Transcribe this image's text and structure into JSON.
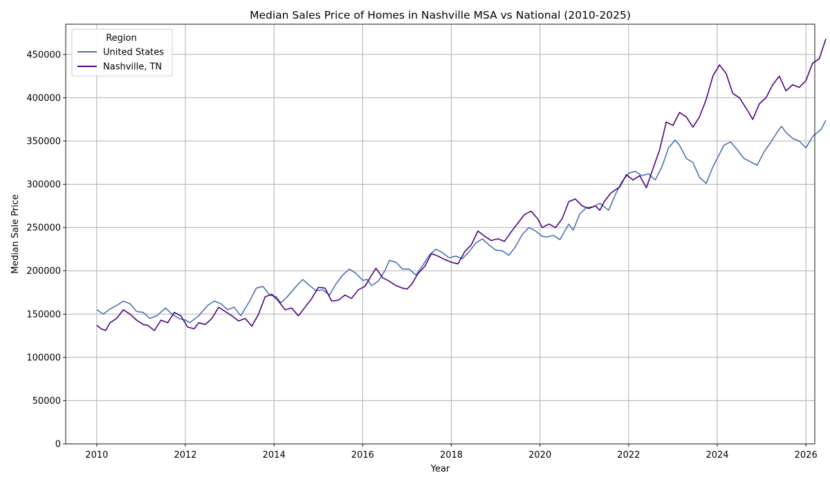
{
  "chart_data": {
    "type": "line",
    "title": "Median Sales Price of Homes in Nashville MSA vs National (2010-2025)",
    "xlabel": "Year",
    "ylabel": "Median Sale Price",
    "xlim": [
      2009.3,
      2026.2
    ],
    "ylim": [
      0,
      485000
    ],
    "x_ticks": [
      2010,
      2012,
      2014,
      2016,
      2018,
      2020,
      2022,
      2024,
      2026
    ],
    "y_ticks": [
      0,
      50000,
      100000,
      150000,
      200000,
      250000,
      300000,
      350000,
      400000,
      450000
    ],
    "grid": true,
    "legend": {
      "title": "Region",
      "position": "top-left"
    },
    "series": [
      {
        "name": "United States",
        "color": "#4c72b0",
        "points": [
          [
            2010.0,
            155000
          ],
          [
            2010.15,
            150000
          ],
          [
            2010.3,
            156000
          ],
          [
            2010.45,
            160000
          ],
          [
            2010.6,
            165000
          ],
          [
            2010.75,
            162000
          ],
          [
            2010.9,
            153000
          ],
          [
            2011.05,
            152000
          ],
          [
            2011.2,
            145000
          ],
          [
            2011.35,
            148000
          ],
          [
            2011.55,
            157000
          ],
          [
            2011.7,
            150000
          ],
          [
            2011.85,
            145000
          ],
          [
            2012.0,
            143000
          ],
          [
            2012.1,
            140000
          ],
          [
            2012.3,
            148000
          ],
          [
            2012.5,
            160000
          ],
          [
            2012.65,
            165000
          ],
          [
            2012.8,
            162000
          ],
          [
            2012.95,
            155000
          ],
          [
            2013.1,
            158000
          ],
          [
            2013.25,
            148000
          ],
          [
            2013.45,
            165000
          ],
          [
            2013.6,
            180000
          ],
          [
            2013.75,
            182000
          ],
          [
            2013.9,
            172000
          ],
          [
            2014.05,
            170000
          ],
          [
            2014.15,
            163000
          ],
          [
            2014.3,
            170000
          ],
          [
            2014.5,
            182000
          ],
          [
            2014.65,
            190000
          ],
          [
            2014.8,
            183000
          ],
          [
            2014.95,
            177000
          ],
          [
            2015.1,
            178000
          ],
          [
            2015.25,
            172000
          ],
          [
            2015.4,
            185000
          ],
          [
            2015.55,
            195000
          ],
          [
            2015.7,
            202000
          ],
          [
            2015.85,
            197000
          ],
          [
            2016.0,
            189000
          ],
          [
            2016.1,
            190000
          ],
          [
            2016.2,
            183000
          ],
          [
            2016.35,
            188000
          ],
          [
            2016.5,
            200000
          ],
          [
            2016.6,
            212000
          ],
          [
            2016.75,
            210000
          ],
          [
            2016.9,
            202000
          ],
          [
            2017.05,
            202000
          ],
          [
            2017.2,
            195000
          ],
          [
            2017.35,
            206000
          ],
          [
            2017.5,
            218000
          ],
          [
            2017.65,
            225000
          ],
          [
            2017.8,
            221000
          ],
          [
            2017.95,
            215000
          ],
          [
            2018.1,
            217000
          ],
          [
            2018.25,
            214000
          ],
          [
            2018.4,
            222000
          ],
          [
            2018.55,
            232000
          ],
          [
            2018.7,
            237000
          ],
          [
            2018.85,
            230000
          ],
          [
            2019.0,
            224000
          ],
          [
            2019.15,
            223000
          ],
          [
            2019.3,
            218000
          ],
          [
            2019.45,
            228000
          ],
          [
            2019.6,
            242000
          ],
          [
            2019.75,
            250000
          ],
          [
            2019.9,
            246000
          ],
          [
            2020.05,
            240000
          ],
          [
            2020.15,
            239000
          ],
          [
            2020.3,
            241000
          ],
          [
            2020.45,
            236000
          ],
          [
            2020.55,
            245000
          ],
          [
            2020.65,
            254000
          ],
          [
            2020.75,
            247000
          ],
          [
            2020.9,
            266000
          ],
          [
            2021.05,
            273000
          ],
          [
            2021.2,
            274000
          ],
          [
            2021.35,
            278000
          ],
          [
            2021.55,
            270000
          ],
          [
            2021.7,
            288000
          ],
          [
            2021.85,
            303000
          ],
          [
            2022.0,
            313000
          ],
          [
            2022.15,
            315000
          ],
          [
            2022.3,
            310000
          ],
          [
            2022.45,
            312000
          ],
          [
            2022.6,
            305000
          ],
          [
            2022.75,
            320000
          ],
          [
            2022.9,
            342000
          ],
          [
            2023.05,
            351000
          ],
          [
            2023.15,
            345000
          ],
          [
            2023.3,
            330000
          ],
          [
            2023.45,
            325000
          ],
          [
            2023.6,
            308000
          ],
          [
            2023.75,
            301000
          ],
          [
            2023.9,
            320000
          ],
          [
            2024.05,
            335000
          ],
          [
            2024.15,
            345000
          ],
          [
            2024.3,
            349000
          ],
          [
            2024.45,
            340000
          ],
          [
            2024.6,
            330000
          ],
          [
            2024.75,
            326000
          ],
          [
            2024.9,
            322000
          ],
          [
            2025.05,
            337000
          ],
          [
            2025.2,
            348000
          ],
          [
            2025.35,
            360000
          ],
          [
            2025.45,
            367000
          ],
          [
            2025.55,
            360000
          ],
          [
            2025.7,
            353000
          ],
          [
            2025.85,
            350000
          ],
          [
            2026.0,
            342000
          ],
          [
            2026.15,
            355000
          ],
          [
            2026.35,
            364000
          ],
          [
            2026.45,
            374000
          ]
        ]
      },
      {
        "name": "Nashville, TN",
        "color": "#4b0082",
        "points": [
          [
            2010.0,
            137000
          ],
          [
            2010.1,
            133000
          ],
          [
            2010.2,
            131000
          ],
          [
            2010.3,
            140000
          ],
          [
            2010.45,
            145000
          ],
          [
            2010.6,
            155000
          ],
          [
            2010.75,
            150000
          ],
          [
            2010.9,
            143000
          ],
          [
            2011.05,
            138000
          ],
          [
            2011.15,
            137000
          ],
          [
            2011.3,
            131000
          ],
          [
            2011.45,
            143000
          ],
          [
            2011.6,
            140000
          ],
          [
            2011.75,
            152000
          ],
          [
            2011.9,
            148000
          ],
          [
            2012.05,
            135000
          ],
          [
            2012.2,
            133000
          ],
          [
            2012.3,
            140000
          ],
          [
            2012.45,
            138000
          ],
          [
            2012.6,
            145000
          ],
          [
            2012.75,
            158000
          ],
          [
            2012.9,
            153000
          ],
          [
            2013.05,
            148000
          ],
          [
            2013.2,
            142000
          ],
          [
            2013.35,
            145000
          ],
          [
            2013.5,
            136000
          ],
          [
            2013.65,
            150000
          ],
          [
            2013.8,
            170000
          ],
          [
            2013.95,
            173000
          ],
          [
            2014.1,
            165000
          ],
          [
            2014.25,
            155000
          ],
          [
            2014.4,
            157000
          ],
          [
            2014.55,
            148000
          ],
          [
            2014.7,
            158000
          ],
          [
            2014.85,
            168000
          ],
          [
            2015.0,
            181000
          ],
          [
            2015.15,
            180000
          ],
          [
            2015.3,
            165000
          ],
          [
            2015.45,
            166000
          ],
          [
            2015.6,
            172000
          ],
          [
            2015.75,
            168000
          ],
          [
            2015.9,
            178000
          ],
          [
            2016.05,
            182000
          ],
          [
            2016.2,
            195000
          ],
          [
            2016.3,
            203000
          ],
          [
            2016.45,
            192000
          ],
          [
            2016.6,
            188000
          ],
          [
            2016.75,
            183000
          ],
          [
            2016.9,
            180000
          ],
          [
            2017.0,
            179000
          ],
          [
            2017.1,
            184000
          ],
          [
            2017.25,
            197000
          ],
          [
            2017.4,
            205000
          ],
          [
            2017.55,
            220000
          ],
          [
            2017.7,
            217000
          ],
          [
            2017.85,
            213000
          ],
          [
            2018.0,
            210000
          ],
          [
            2018.15,
            208000
          ],
          [
            2018.3,
            222000
          ],
          [
            2018.45,
            230000
          ],
          [
            2018.6,
            246000
          ],
          [
            2018.75,
            240000
          ],
          [
            2018.9,
            235000
          ],
          [
            2019.05,
            237000
          ],
          [
            2019.2,
            234000
          ],
          [
            2019.35,
            245000
          ],
          [
            2019.5,
            255000
          ],
          [
            2019.65,
            265000
          ],
          [
            2019.8,
            269000
          ],
          [
            2019.95,
            260000
          ],
          [
            2020.05,
            250000
          ],
          [
            2020.2,
            254000
          ],
          [
            2020.35,
            250000
          ],
          [
            2020.5,
            260000
          ],
          [
            2020.65,
            280000
          ],
          [
            2020.8,
            283000
          ],
          [
            2020.95,
            275000
          ],
          [
            2021.1,
            272000
          ],
          [
            2021.25,
            275000
          ],
          [
            2021.35,
            270000
          ],
          [
            2021.45,
            280000
          ],
          [
            2021.6,
            290000
          ],
          [
            2021.8,
            297000
          ],
          [
            2021.95,
            311000
          ],
          [
            2022.1,
            305000
          ],
          [
            2022.25,
            310000
          ],
          [
            2022.4,
            296000
          ],
          [
            2022.55,
            318000
          ],
          [
            2022.7,
            340000
          ],
          [
            2022.85,
            372000
          ],
          [
            2023.0,
            368000
          ],
          [
            2023.15,
            383000
          ],
          [
            2023.3,
            378000
          ],
          [
            2023.45,
            366000
          ],
          [
            2023.6,
            378000
          ],
          [
            2023.75,
            398000
          ],
          [
            2023.9,
            425000
          ],
          [
            2024.05,
            438000
          ],
          [
            2024.2,
            428000
          ],
          [
            2024.35,
            405000
          ],
          [
            2024.5,
            400000
          ],
          [
            2024.65,
            388000
          ],
          [
            2024.8,
            375000
          ],
          [
            2024.95,
            393000
          ],
          [
            2025.1,
            400000
          ],
          [
            2025.25,
            415000
          ],
          [
            2025.4,
            425000
          ],
          [
            2025.55,
            408000
          ],
          [
            2025.7,
            415000
          ],
          [
            2025.85,
            412000
          ],
          [
            2026.0,
            420000
          ],
          [
            2026.15,
            440000
          ],
          [
            2026.3,
            445000
          ],
          [
            2026.45,
            468000
          ]
        ]
      }
    ]
  }
}
